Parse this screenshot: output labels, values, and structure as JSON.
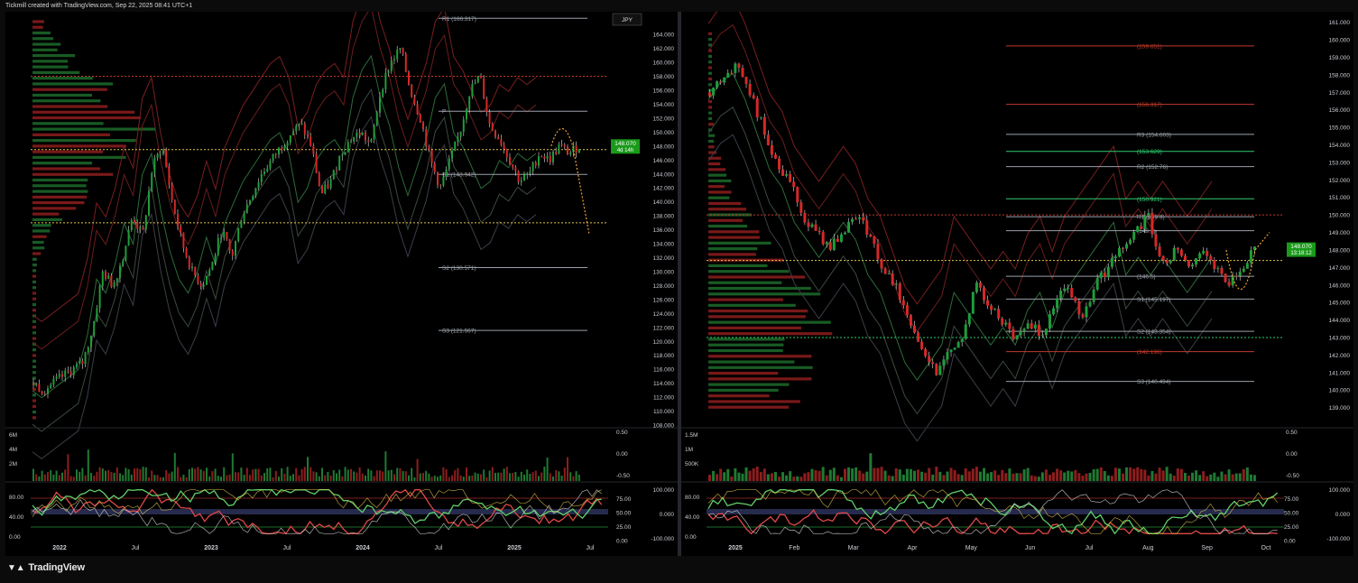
{
  "header": {
    "caption": "Tickmill created with TradingView.com, Sep 22, 2025 08:41 UTC+1"
  },
  "footer": {
    "brand": "TradingView",
    "logo_icon": "tradingview-logo-icon"
  },
  "colors": {
    "up": "#1f9d3a",
    "down": "#d62828",
    "price_tag": "#1a9a1a",
    "poc": "#e0c54b",
    "level_red": "#c0392b",
    "level_green": "#2ecc71",
    "projection": "#f0a030"
  },
  "chart_data": [
    {
      "type": "candlestick",
      "symbol": "JPY",
      "price_scale": [
        "164.000",
        "162.000",
        "160.000",
        "158.000",
        "156.000",
        "154.000",
        "152.000",
        "150.000",
        "148.000",
        "146.000",
        "144.000",
        "142.000",
        "140.000",
        "138.000",
        "136.000",
        "134.000",
        "132.000",
        "130.000",
        "128.000",
        "126.000",
        "124.000",
        "122.000",
        "120.000",
        "118.000",
        "116.000",
        "114.000",
        "112.000",
        "110.000",
        "108.000"
      ],
      "ylim": [
        108,
        167
      ],
      "x_labels": [
        "2022",
        "Jul",
        "2023",
        "Jul",
        "2024",
        "Jul",
        "2025",
        "Jul"
      ],
      "last_price": "148.070",
      "countdown": "4d 14h",
      "pivots": [
        {
          "label": "R1 (166.317)",
          "value": 166.317,
          "color": "gray"
        },
        {
          "label": "P",
          "value": 153.0,
          "color": "gray"
        },
        {
          "label": "S1 (143.942)",
          "value": 143.942,
          "color": "gray"
        },
        {
          "label": "S2 (130.571)",
          "value": 130.571,
          "color": "gray"
        },
        {
          "label": "S3 (121.567)",
          "value": 121.567,
          "color": "gray"
        }
      ],
      "dotted_levels": [
        {
          "value": 158.0,
          "color": "red"
        },
        {
          "value": 147.5,
          "color": "yellow"
        },
        {
          "value": 137.0,
          "color": "yellow"
        }
      ],
      "path_points": [
        114,
        113,
        114,
        115,
        116,
        117,
        122,
        130,
        128,
        132,
        138,
        135,
        145,
        148,
        140,
        134,
        130,
        128,
        131,
        136,
        132,
        138,
        141,
        144,
        146,
        148,
        150,
        151,
        148,
        141,
        143,
        147,
        149,
        150,
        148,
        156,
        160,
        162,
        156,
        152,
        146,
        142,
        146,
        150,
        156,
        158,
        151,
        149,
        146,
        143,
        144,
        147,
        146,
        148,
        147,
        148
      ],
      "volume_scale": [
        "6M",
        "4M",
        "2M"
      ],
      "volume_osc_scale": [
        "0.50",
        "0.00",
        "-0.50"
      ],
      "osc_scale_left": [
        "80.00",
        "40.00",
        "0.00"
      ],
      "osc_scale_right": [
        "75.00",
        "50.00",
        "25.00",
        "0.00"
      ],
      "osc_scale_right2": [
        "100.000",
        "0.000",
        "-100.000"
      ]
    },
    {
      "type": "candlestick",
      "price_scale": [
        "161.000",
        "160.000",
        "159.000",
        "158.000",
        "157.000",
        "156.000",
        "155.000",
        "154.000",
        "153.000",
        "152.000",
        "151.000",
        "150.000",
        "149.000",
        "148.000",
        "147.000",
        "146.000",
        "145.000",
        "144.000",
        "143.000",
        "142.000",
        "141.000",
        "140.000",
        "139.000"
      ],
      "ylim": [
        138,
        161.5
      ],
      "x_labels": [
        "2025",
        "Feb",
        "Mar",
        "Apr",
        "May",
        "Jun",
        "Jul",
        "Aug",
        "Sep",
        "Oct"
      ],
      "last_price": "148.070",
      "countdown": "13:18:12",
      "pivots": [
        {
          "label": "(159.651)",
          "value": 159.651,
          "color": "red"
        },
        {
          "label": "(156.317)",
          "value": 156.317,
          "color": "red"
        },
        {
          "label": "R3 (154.603)",
          "value": 154.603,
          "color": "gray"
        },
        {
          "label": "(153.629)",
          "value": 153.629,
          "color": "green"
        },
        {
          "label": "R2 (152.76)",
          "value": 152.76,
          "color": "gray"
        },
        {
          "label": "(150.921)",
          "value": 150.921,
          "color": "green"
        },
        {
          "label": "R1 (149.9)",
          "value": 149.9,
          "color": "gray"
        },
        {
          "label": "(149.1)",
          "value": 149.1,
          "color": "gray"
        },
        {
          "label": "(146.5)",
          "value": 146.5,
          "color": "gray"
        },
        {
          "label": "S1 (145.197)",
          "value": 145.197,
          "color": "gray"
        },
        {
          "label": "S2 (143.354)",
          "value": 143.354,
          "color": "gray"
        },
        {
          "label": "(142.196)",
          "value": 142.196,
          "color": "red"
        },
        {
          "label": "S3 (140.494)",
          "value": 140.494,
          "color": "gray"
        }
      ],
      "dotted_levels": [
        {
          "value": 150.0,
          "color": "red"
        },
        {
          "value": 147.4,
          "color": "yellow"
        },
        {
          "value": 143.0,
          "color": "green"
        }
      ],
      "path_points": [
        157,
        158,
        158.5,
        157,
        155,
        153,
        152,
        150,
        149,
        148,
        149,
        150,
        149,
        147,
        146,
        144,
        142,
        141,
        142,
        143,
        146,
        145,
        144,
        143,
        144,
        143,
        145,
        146,
        144,
        146,
        147,
        148,
        149,
        150,
        147,
        148,
        147,
        148,
        147,
        146,
        147,
        148
      ],
      "volume_scale": [
        "1.5M",
        "1M",
        "500K"
      ],
      "volume_osc_scale": [
        "0.50",
        "0.00",
        "-0.50"
      ],
      "osc_scale_left": [
        "80.00",
        "40.00",
        "0.00"
      ],
      "osc_scale_right": [
        "75.00",
        "50.00",
        "25.00",
        "0.00"
      ],
      "osc_scale_right2": [
        "100.000",
        "0.000",
        "-100.000"
      ]
    }
  ]
}
